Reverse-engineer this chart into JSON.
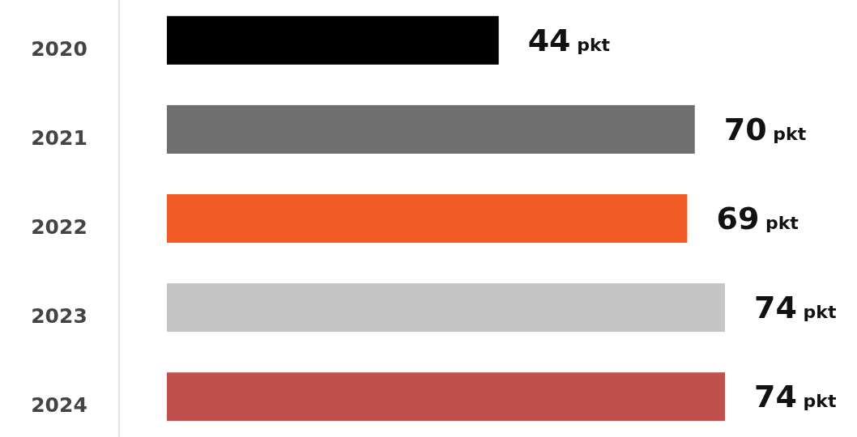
{
  "chart_data": {
    "type": "bar",
    "orientation": "horizontal",
    "categories": [
      "2020",
      "2021",
      "2022",
      "2023",
      "2024"
    ],
    "values": [
      44,
      70,
      69,
      74,
      74
    ],
    "colors": [
      "#000000",
      "#6f6f6f",
      "#f05a24",
      "#c5c5c5",
      "#c0504d"
    ],
    "value_labels": [
      "44 pkt",
      "70 pkt",
      "69 pkt",
      "74 pkt",
      "74 pkt"
    ]
  }
}
